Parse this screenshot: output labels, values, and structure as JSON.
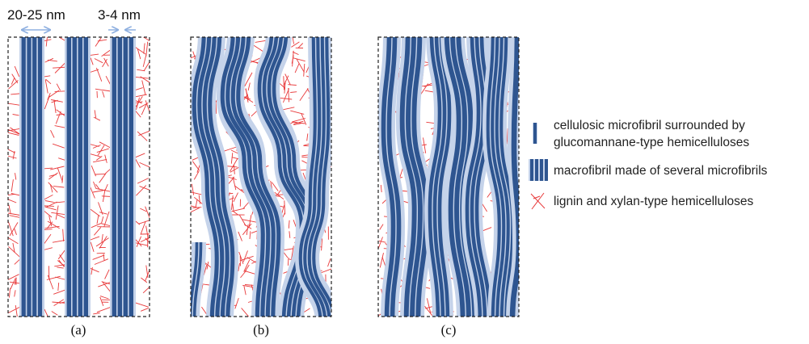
{
  "dimensions": {
    "macrofibril_width": "20-25 nm",
    "microfibril_width": "3-4 nm"
  },
  "panels": [
    {
      "id": "a",
      "caption": "(a)"
    },
    {
      "id": "b",
      "caption": "(b)"
    },
    {
      "id": "c",
      "caption": "(c)"
    }
  ],
  "legend": [
    {
      "id": "microfibril",
      "icon": "single-fibril-icon",
      "line1": "cellulosic microfibril surrounded by",
      "line2": "glucomannane-type hemicelluloses"
    },
    {
      "id": "macrofibril",
      "icon": "macrofibril-icon",
      "line1": "macrofibril made of several microfibrils"
    },
    {
      "id": "lignin",
      "icon": "lignin-cross-icon",
      "line1": "lignin and xylan-type hemicelluloses"
    }
  ],
  "colors": {
    "fibril": "#2e5590",
    "halo": "#c5d3ea",
    "lignin": "#e8393a",
    "arrow": "#8fb0e0",
    "frame": "#222222"
  }
}
